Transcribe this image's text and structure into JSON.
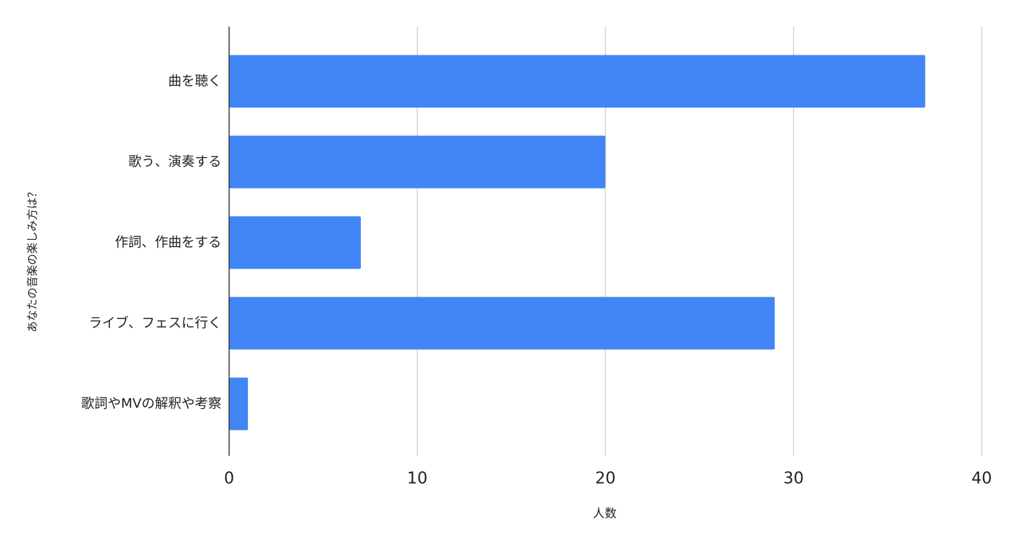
{
  "chart_data": {
    "type": "hbar",
    "title": null,
    "x_label": "人数",
    "y_label": "あなたの音楽の楽しみ方は？",
    "categories": [
      "曲を聴く",
      "歌う、演奏する",
      "作詞、作曲をする",
      "ライブ、フェスに行く",
      "歌詞やMVの解釈や考察"
    ],
    "values": [
      37,
      20,
      7,
      29,
      1
    ],
    "color": "#4285f4",
    "xlim": [
      0,
      40
    ],
    "xticks": [
      0,
      10,
      20,
      30,
      40
    ],
    "grid": true
  }
}
